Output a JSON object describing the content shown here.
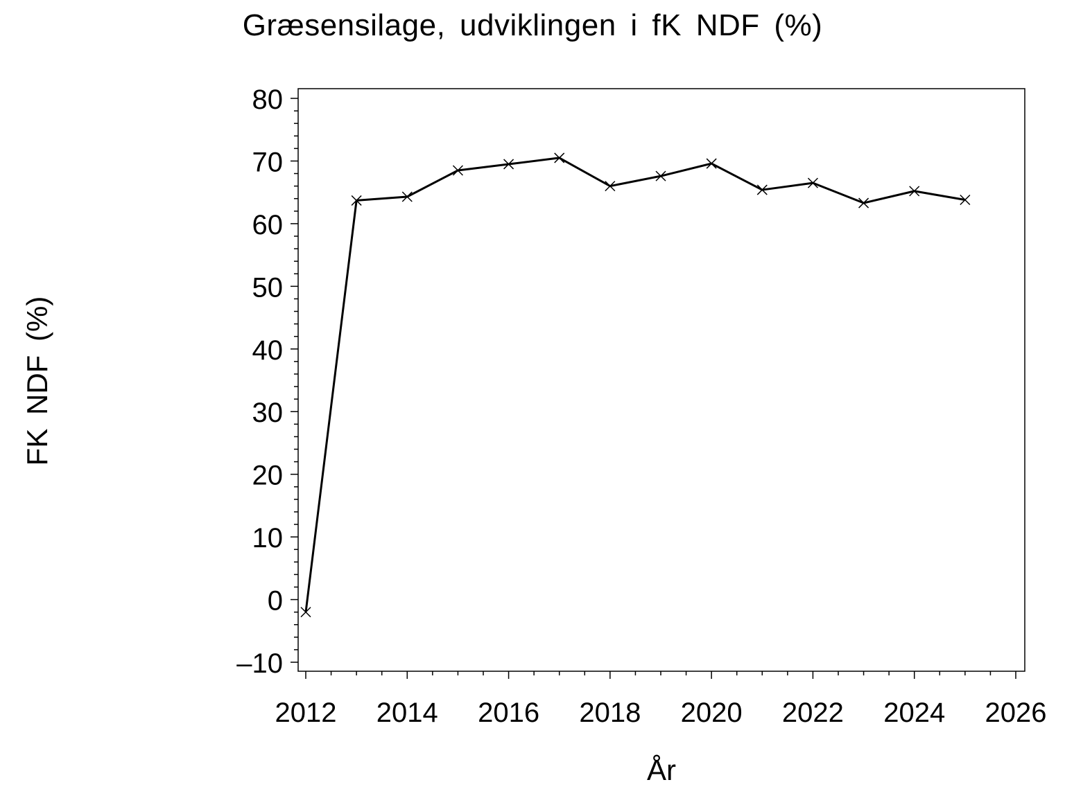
{
  "chart_data": {
    "type": "line",
    "title": "Græsensilage,  udviklingen  i  fK  NDF  (%)",
    "xlabel": "År",
    "ylabel": "FK  NDF  (%)",
    "xlim": [
      2012,
      2026
    ],
    "ylim": [
      -10,
      80
    ],
    "xticks": [
      2012,
      2014,
      2016,
      2018,
      2020,
      2022,
      2024,
      2026
    ],
    "xtick_labels": [
      "2012",
      "2014",
      "2016",
      "2018",
      "2020",
      "2022",
      "2024",
      "2026"
    ],
    "yticks": [
      -10,
      0,
      10,
      20,
      30,
      40,
      50,
      60,
      70,
      80
    ],
    "ytick_labels": [
      "–10",
      "0",
      "10",
      "20",
      "30",
      "40",
      "50",
      "60",
      "70",
      "80"
    ],
    "grid": false,
    "marker": "x",
    "color": "#000000",
    "series": [
      {
        "x": [
          2012,
          2013,
          2014,
          2015,
          2016,
          2017,
          2018,
          2019,
          2020,
          2021,
          2022,
          2023,
          2024,
          2025
        ],
        "y": [
          -2.0,
          63.7,
          64.3,
          68.5,
          69.5,
          70.5,
          66.0,
          67.6,
          69.6,
          65.4,
          66.5,
          63.3,
          65.2,
          63.8
        ]
      }
    ]
  }
}
